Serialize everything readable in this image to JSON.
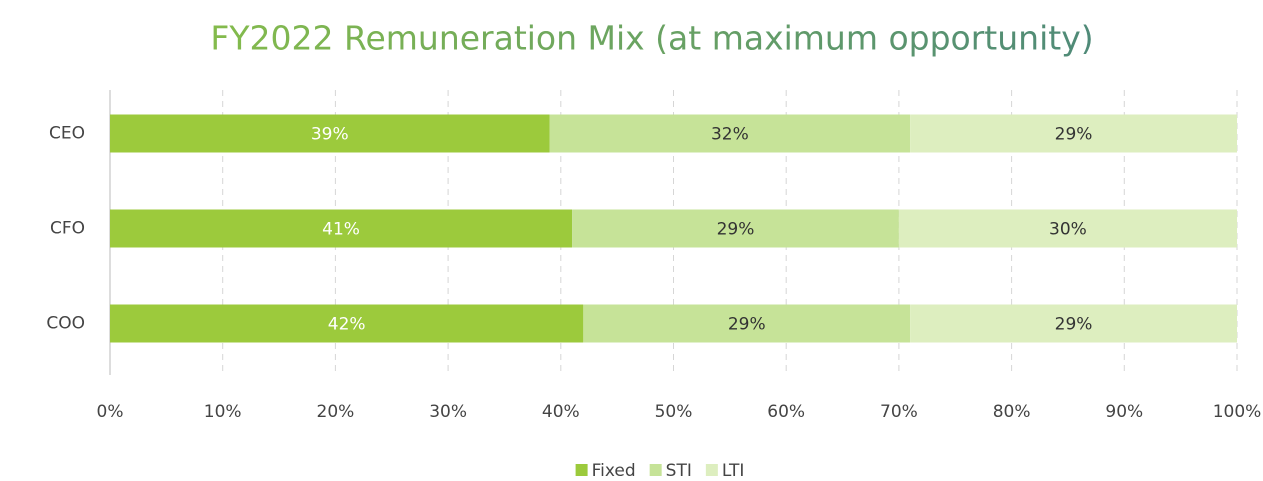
{
  "chart_data": {
    "type": "stacked_barh",
    "title": "FY2022 Remuneration Mix (at maximum opportunity)",
    "categories": [
      "CEO",
      "CFO",
      "COO"
    ],
    "series": [
      {
        "name": "Fixed",
        "color": "#9cca3c",
        "label_color": "#ffffff",
        "values": [
          39,
          41,
          42
        ],
        "value_labels": [
          "39%",
          "41%",
          "42%"
        ]
      },
      {
        "name": "STI",
        "color": "#c6e398",
        "label_color": "#333333",
        "values": [
          32,
          29,
          29
        ],
        "value_labels": [
          "32%",
          "29%",
          "29%"
        ]
      },
      {
        "name": "LTI",
        "color": "#ddeebf",
        "label_color": "#333333",
        "values": [
          29,
          30,
          29
        ],
        "value_labels": [
          "29%",
          "30%",
          "29%"
        ]
      }
    ],
    "xlim": [
      0,
      100
    ],
    "xticks": [
      {
        "value": 0,
        "label": "0%"
      },
      {
        "value": 10,
        "label": "10%"
      },
      {
        "value": 20,
        "label": "20%"
      },
      {
        "value": 30,
        "label": "30%"
      },
      {
        "value": 40,
        "label": "40%"
      },
      {
        "value": 50,
        "label": "50%"
      },
      {
        "value": 60,
        "label": "60%"
      },
      {
        "value": 70,
        "label": "70%"
      },
      {
        "value": 80,
        "label": "80%"
      },
      {
        "value": 90,
        "label": "90%"
      },
      {
        "value": 100,
        "label": "100%"
      }
    ],
    "grid": true,
    "legend": "bottom"
  }
}
